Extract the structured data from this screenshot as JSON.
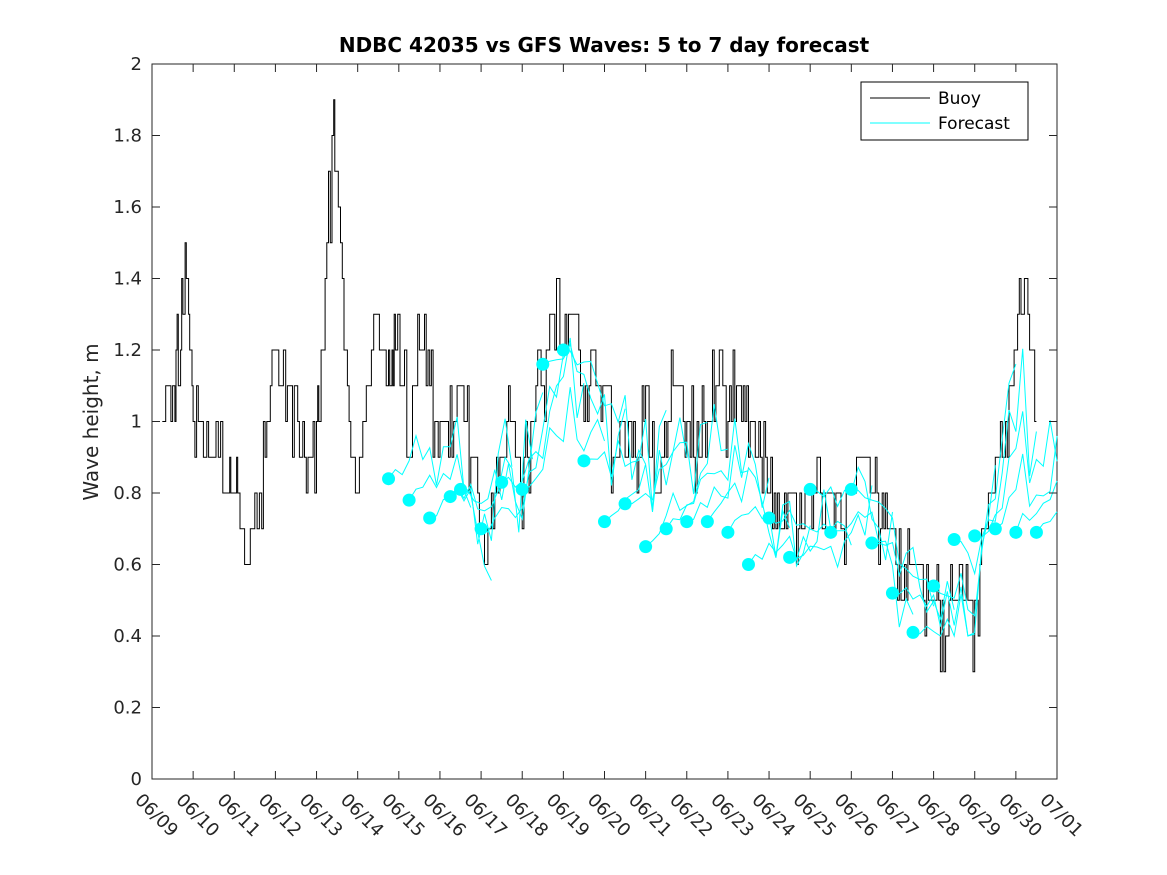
{
  "chart_data": {
    "type": "line",
    "title": "NDBC 42035 vs GFS Waves: 5 to 7 day forecast",
    "xlabel": "",
    "ylabel": "Wave height, m",
    "ylim": [
      0,
      2
    ],
    "yticks": [
      "0",
      "0.2",
      "0.4",
      "0.6",
      "0.8",
      "1",
      "1.2",
      "1.4",
      "1.6",
      "1.8",
      "2"
    ],
    "xlim": [
      "2019-06-09T00:00",
      "2019-07-01T00:00"
    ],
    "xticks": [
      "06/09",
      "06/10",
      "06/11",
      "06/12",
      "06/13",
      "06/14",
      "06/15",
      "06/16",
      "06/17",
      "06/18",
      "06/19",
      "06/20",
      "06/21",
      "06/22",
      "06/23",
      "06/24",
      "06/25",
      "06/26",
      "06/27",
      "06/28",
      "06/29",
      "06/30",
      "07/01"
    ],
    "grid": false,
    "legend_position": "top-right",
    "colors": {
      "buoy": "#000000",
      "forecast": "#00ffff"
    },
    "legend": [
      {
        "label": "Buoy",
        "color": "#000000"
      },
      {
        "label": "Forecast",
        "color": "#00ffff"
      }
    ],
    "series": [
      {
        "name": "Buoy",
        "x": [
          "06/09 06:00",
          "06/09 12:00",
          "06/09 16:00",
          "06/09 20:00",
          "06/10 00:00",
          "06/10 06:00",
          "06/10 12:00",
          "06/10 20:00",
          "06/11 00:00",
          "06/11 04:00",
          "06/11 08:00",
          "06/11 16:00",
          "06/11 22:00",
          "06/12 06:00",
          "06/12 12:00",
          "06/12 18:00",
          "06/13 00:00",
          "06/13 04:00",
          "06/13 10:00",
          "06/13 14:00",
          "06/13 20:00",
          "06/14 00:00",
          "06/14 06:00",
          "06/14 10:00",
          "06/14 18:00",
          "06/14 22:00",
          "06/15 06:00",
          "06/15 12:00",
          "06/15 18:00",
          "06/16 00:00",
          "06/16 06:00",
          "06/16 12:00",
          "06/16 18:00",
          "06/17 00:00",
          "06/17 06:00",
          "06/17 12:00",
          "06/17 18:00",
          "06/18 00:00",
          "06/18 06:00",
          "06/18 12:00",
          "06/18 18:00",
          "06/19 00:00",
          "06/19 06:00",
          "06/19 12:00",
          "06/19 18:00",
          "06/20 00:00",
          "06/20 06:00",
          "06/20 12:00",
          "06/20 18:00",
          "06/21 00:00",
          "06/21 06:00",
          "06/21 12:00",
          "06/21 18:00",
          "06/22 00:00",
          "06/22 06:00",
          "06/22 12:00",
          "06/22 18:00",
          "06/23 00:00",
          "06/23 06:00",
          "06/23 12:00",
          "06/23 18:00",
          "06/24 00:00",
          "06/24 06:00",
          "06/24 12:00",
          "06/24 18:00",
          "06/25 00:00",
          "06/25 06:00",
          "06/25 12:00",
          "06/25 18:00",
          "06/26 00:00",
          "06/26 06:00",
          "06/26 12:00",
          "06/26 18:00",
          "06/27 00:00",
          "06/27 06:00",
          "06/27 12:00",
          "06/27 18:00",
          "06/28 00:00",
          "06/28 06:00",
          "06/28 12:00",
          "06/28 18:00",
          "06/29 00:00",
          "06/29 06:00",
          "06/29 12:00",
          "06/29 18:00",
          "06/30 00:00",
          "06/30 06:00",
          "06/30 12:00"
        ],
        "values": [
          1.0,
          1.1,
          1.2,
          1.4,
          1.0,
          1.0,
          0.9,
          0.8,
          0.8,
          0.7,
          0.6,
          0.8,
          1.2,
          1.1,
          1.0,
          0.8,
          0.9,
          1.3,
          1.8,
          1.5,
          0.9,
          0.8,
          1.1,
          1.3,
          1.1,
          1.2,
          1.0,
          1.2,
          1.1,
          0.9,
          1.0,
          1.1,
          0.9,
          0.7,
          0.7,
          0.9,
          1.0,
          0.8,
          1.0,
          1.1,
          1.3,
          1.2,
          1.3,
          1.1,
          1.1,
          1.0,
          0.9,
          1.0,
          0.9,
          1.0,
          0.8,
          1.0,
          1.1,
          1.0,
          0.9,
          1.0,
          1.1,
          1.0,
          1.1,
          1.0,
          0.9,
          0.8,
          0.7,
          0.8,
          0.7,
          0.7,
          0.8,
          0.8,
          0.7,
          0.8,
          0.9,
          0.8,
          0.7,
          0.7,
          0.5,
          0.6,
          0.5,
          0.5,
          0.4,
          0.5,
          0.6,
          0.4,
          0.7,
          0.9,
          1.0,
          1.2,
          1.4,
          1.0
        ]
      },
      {
        "name": "Forecast",
        "markers": {
          "x": [
            "06/14 18:00",
            "06/15 06:00",
            "06/15 18:00",
            "06/16 06:00",
            "06/16 12:00",
            "06/17 00:00",
            "06/17 12:00",
            "06/18 00:00",
            "06/18 12:00",
            "06/19 00:00",
            "06/19 12:00",
            "06/20 00:00",
            "06/20 12:00",
            "06/21 00:00",
            "06/21 12:00",
            "06/22 00:00",
            "06/22 12:00",
            "06/23 00:00",
            "06/23 12:00",
            "06/24 00:00",
            "06/24 12:00",
            "06/25 00:00",
            "06/25 12:00",
            "06/26 00:00",
            "06/26 12:00",
            "06/27 00:00",
            "06/27 12:00",
            "06/28 00:00",
            "06/28 12:00",
            "06/29 00:00",
            "06/29 12:00",
            "06/30 00:00",
            "06/30 12:00"
          ],
          "values": [
            0.84,
            0.78,
            0.73,
            0.79,
            0.81,
            0.7,
            0.83,
            0.81,
            1.16,
            1.2,
            0.89,
            0.72,
            0.77,
            0.65,
            0.7,
            0.72,
            0.72,
            0.69,
            0.6,
            0.73,
            0.62,
            0.81,
            0.69,
            0.81,
            0.66,
            0.52,
            0.41,
            0.54,
            0.67,
            0.68,
            0.7,
            0.69,
            0.69
          ]
        }
      }
    ]
  }
}
